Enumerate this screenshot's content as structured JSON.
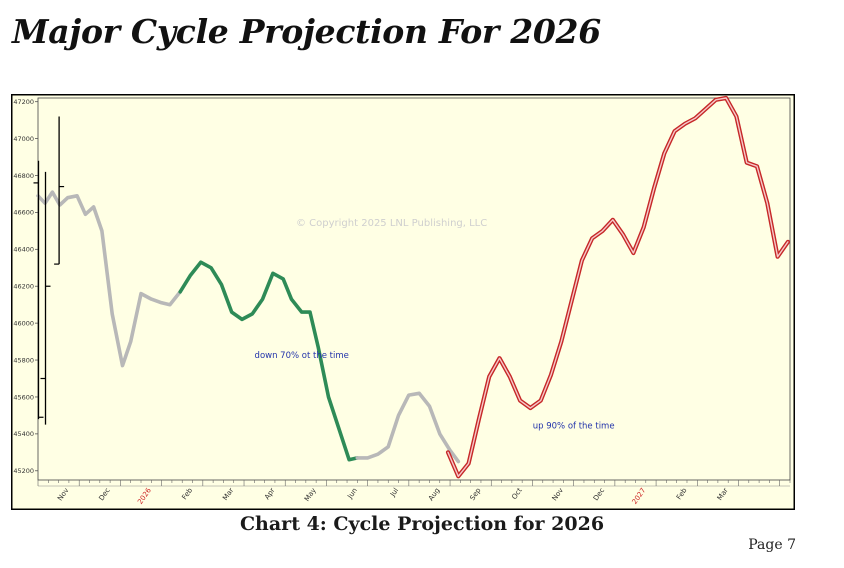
{
  "page": {
    "title": "Major Cycle Projection For 2026",
    "caption": "Chart 4: Cycle Projection for 2026",
    "page_number": "Page 7"
  },
  "chart_data": {
    "type": "line",
    "title": "",
    "xlabel": "",
    "ylabel": "",
    "ylim": [
      45150,
      47220
    ],
    "y_ticks": [
      45200,
      45400,
      45600,
      45800,
      46000,
      46200,
      46400,
      46600,
      46800,
      47000,
      47200
    ],
    "y_tick_labels": [
      "45200",
      "45400",
      "45600",
      "45800",
      "46000",
      "46200",
      "46400",
      "46600",
      "46800",
      "47000",
      "47200"
    ],
    "x_range": [
      0,
      18.25
    ],
    "months": [
      {
        "label": "Nov",
        "x": 0.75,
        "year": false
      },
      {
        "label": "Dec",
        "x": 1.75,
        "year": false
      },
      {
        "label": "2026",
        "x": 2.75,
        "year": true
      },
      {
        "label": "Feb",
        "x": 3.75,
        "year": false
      },
      {
        "label": "Mar",
        "x": 4.75,
        "year": false
      },
      {
        "label": "Apr",
        "x": 5.75,
        "year": false
      },
      {
        "label": "May",
        "x": 6.75,
        "year": false
      },
      {
        "label": "Jun",
        "x": 7.75,
        "year": false
      },
      {
        "label": "Jul",
        "x": 8.75,
        "year": false
      },
      {
        "label": "Aug",
        "x": 9.75,
        "year": false
      },
      {
        "label": "Sep",
        "x": 10.75,
        "year": false
      },
      {
        "label": "Oct",
        "x": 11.75,
        "year": false
      },
      {
        "label": "Nov",
        "x": 12.75,
        "year": false
      },
      {
        "label": "Dec",
        "x": 13.75,
        "year": false
      },
      {
        "label": "2027",
        "x": 14.75,
        "year": true
      },
      {
        "label": "Feb",
        "x": 15.75,
        "year": false
      },
      {
        "label": "Mar",
        "x": 16.75,
        "year": false
      }
    ],
    "price_bars": [
      {
        "x": 0.0,
        "high": 46880,
        "low": 45480,
        "open": 46760,
        "close": 45490
      },
      {
        "x": 0.17,
        "high": 46820,
        "low": 45450,
        "open": 45700,
        "close": 46200
      },
      {
        "x": 0.5,
        "high": 47120,
        "low": 46320,
        "open": 46320,
        "close": 46740
      }
    ],
    "series": [
      {
        "name": "cycle-early",
        "color": "#b8b8b8",
        "style": "gray",
        "points": [
          [
            0.0,
            46690
          ],
          [
            0.17,
            46650
          ],
          [
            0.35,
            46710
          ],
          [
            0.53,
            46640
          ],
          [
            0.72,
            46680
          ],
          [
            0.95,
            46690
          ],
          [
            1.15,
            46590
          ],
          [
            1.35,
            46630
          ],
          [
            1.55,
            46500
          ],
          [
            1.8,
            46050
          ],
          [
            2.05,
            45770
          ],
          [
            2.25,
            45900
          ],
          [
            2.5,
            46160
          ],
          [
            2.75,
            46130
          ],
          [
            3.0,
            46110
          ],
          [
            3.2,
            46100
          ],
          [
            3.45,
            46170
          ]
        ]
      },
      {
        "name": "down-phase",
        "color": "#2e8b57",
        "style": "green",
        "points": [
          [
            3.45,
            46170
          ],
          [
            3.7,
            46260
          ],
          [
            3.95,
            46330
          ],
          [
            4.2,
            46300
          ],
          [
            4.45,
            46210
          ],
          [
            4.7,
            46060
          ],
          [
            4.95,
            46020
          ],
          [
            5.2,
            46050
          ],
          [
            5.45,
            46130
          ],
          [
            5.7,
            46270
          ],
          [
            5.95,
            46240
          ],
          [
            6.15,
            46130
          ],
          [
            6.4,
            46060
          ],
          [
            6.6,
            46060
          ],
          [
            6.8,
            45870
          ],
          [
            7.05,
            45600
          ],
          [
            7.3,
            45430
          ],
          [
            7.55,
            45260
          ],
          [
            7.75,
            45270
          ]
        ]
      },
      {
        "name": "cycle-mid",
        "color": "#b8b8b8",
        "style": "gray",
        "points": [
          [
            7.75,
            45270
          ],
          [
            8.0,
            45270
          ],
          [
            8.25,
            45290
          ],
          [
            8.5,
            45330
          ],
          [
            8.75,
            45500
          ],
          [
            9.0,
            45610
          ],
          [
            9.25,
            45620
          ],
          [
            9.5,
            45550
          ],
          [
            9.75,
            45400
          ],
          [
            10.0,
            45310
          ],
          [
            10.2,
            45250
          ]
        ]
      },
      {
        "name": "up-phase",
        "color": "#c62828",
        "style": "red",
        "points": [
          [
            9.95,
            45300
          ],
          [
            10.2,
            45170
          ],
          [
            10.45,
            45240
          ],
          [
            10.7,
            45480
          ],
          [
            10.95,
            45710
          ],
          [
            11.2,
            45810
          ],
          [
            11.45,
            45710
          ],
          [
            11.7,
            45580
          ],
          [
            11.95,
            45540
          ],
          [
            12.2,
            45580
          ],
          [
            12.45,
            45720
          ],
          [
            12.7,
            45900
          ],
          [
            12.95,
            46120
          ],
          [
            13.2,
            46340
          ],
          [
            13.45,
            46460
          ],
          [
            13.7,
            46500
          ],
          [
            13.95,
            46560
          ],
          [
            14.2,
            46480
          ],
          [
            14.45,
            46380
          ],
          [
            14.7,
            46520
          ],
          [
            14.95,
            46730
          ],
          [
            15.2,
            46920
          ],
          [
            15.45,
            47040
          ],
          [
            15.7,
            47080
          ],
          [
            15.95,
            47110
          ],
          [
            16.2,
            47160
          ],
          [
            16.45,
            47210
          ],
          [
            16.7,
            47220
          ],
          [
            16.95,
            47120
          ],
          [
            17.2,
            46870
          ],
          [
            17.45,
            46850
          ],
          [
            17.7,
            46650
          ],
          [
            17.95,
            46360
          ],
          [
            18.2,
            46440
          ]
        ]
      }
    ],
    "annotations": [
      {
        "text": "down 70% ot the time",
        "x": 6.4,
        "y": 45810
      },
      {
        "text": "up 90% of the time",
        "x": 13.0,
        "y": 45430
      }
    ],
    "watermark": "© Copyright 2025 LNL Publishing, LLC"
  }
}
